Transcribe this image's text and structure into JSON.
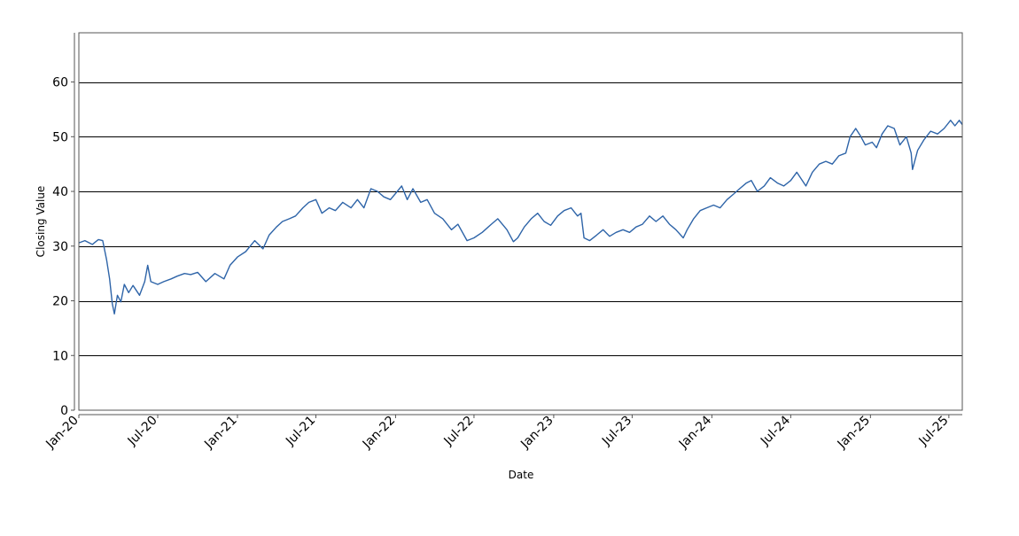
{
  "chart_data": {
    "type": "line",
    "title": "",
    "xlabel": "Date",
    "ylabel": "Closing Value",
    "xlim": [
      "2020-01-01",
      "2025-08-01"
    ],
    "ylim": [
      0,
      69
    ],
    "y_ticks": [
      0,
      10,
      20,
      30,
      40,
      50,
      60
    ],
    "x_ticks": [
      {
        "date": "2020-01-01",
        "label": "Jan-20"
      },
      {
        "date": "2020-07-01",
        "label": "Jul-20"
      },
      {
        "date": "2021-01-01",
        "label": "Jan-21"
      },
      {
        "date": "2021-07-01",
        "label": "Jul-21"
      },
      {
        "date": "2022-01-01",
        "label": "Jan-22"
      },
      {
        "date": "2022-07-01",
        "label": "Jul-22"
      },
      {
        "date": "2023-01-01",
        "label": "Jan-23"
      },
      {
        "date": "2023-07-01",
        "label": "Jul-23"
      },
      {
        "date": "2024-01-01",
        "label": "Jan-24"
      },
      {
        "date": "2024-07-01",
        "label": "Jul-24"
      },
      {
        "date": "2025-01-01",
        "label": "Jan-25"
      },
      {
        "date": "2025-07-01",
        "label": "Jul-25"
      }
    ],
    "grid": "horizontal",
    "legend": "none",
    "colors": {
      "line": "#2e64a8",
      "grid": "#000000",
      "frame": "#555555"
    },
    "series": [
      {
        "points": [
          [
            "2020-01-01",
            30.6
          ],
          [
            "2020-01-15",
            31.0
          ],
          [
            "2020-02-01",
            30.3
          ],
          [
            "2020-02-15",
            31.2
          ],
          [
            "2020-02-25",
            31.0
          ],
          [
            "2020-03-05",
            27.5
          ],
          [
            "2020-03-12",
            24.0
          ],
          [
            "2020-03-18",
            19.5
          ],
          [
            "2020-03-23",
            17.6
          ],
          [
            "2020-03-30",
            21.0
          ],
          [
            "2020-04-07",
            19.8
          ],
          [
            "2020-04-15",
            23.0
          ],
          [
            "2020-04-25",
            21.5
          ],
          [
            "2020-05-05",
            22.8
          ],
          [
            "2020-05-20",
            21.0
          ],
          [
            "2020-06-01",
            23.5
          ],
          [
            "2020-06-08",
            26.5
          ],
          [
            "2020-06-15",
            23.5
          ],
          [
            "2020-07-01",
            23.0
          ],
          [
            "2020-07-15",
            23.5
          ],
          [
            "2020-08-01",
            24.0
          ],
          [
            "2020-08-15",
            24.5
          ],
          [
            "2020-09-01",
            25.0
          ],
          [
            "2020-09-15",
            24.8
          ],
          [
            "2020-10-01",
            25.2
          ],
          [
            "2020-10-20",
            23.5
          ],
          [
            "2020-11-10",
            25.0
          ],
          [
            "2020-12-01",
            24.0
          ],
          [
            "2020-12-15",
            26.5
          ],
          [
            "2021-01-01",
            28.0
          ],
          [
            "2021-01-20",
            29.0
          ],
          [
            "2021-02-10",
            31.0
          ],
          [
            "2021-03-01",
            29.5
          ],
          [
            "2021-03-15",
            32.0
          ],
          [
            "2021-04-01",
            33.5
          ],
          [
            "2021-04-15",
            34.5
          ],
          [
            "2021-05-01",
            35.0
          ],
          [
            "2021-05-15",
            35.5
          ],
          [
            "2021-06-01",
            37.0
          ],
          [
            "2021-06-15",
            38.0
          ],
          [
            "2021-07-01",
            38.5
          ],
          [
            "2021-07-15",
            36.0
          ],
          [
            "2021-08-01",
            37.0
          ],
          [
            "2021-08-15",
            36.5
          ],
          [
            "2021-09-01",
            38.0
          ],
          [
            "2021-09-20",
            37.0
          ],
          [
            "2021-10-05",
            38.5
          ],
          [
            "2021-10-20",
            37.0
          ],
          [
            "2021-11-05",
            40.5
          ],
          [
            "2021-11-20",
            40.0
          ],
          [
            "2021-12-05",
            39.0
          ],
          [
            "2021-12-20",
            38.5
          ],
          [
            "2022-01-05",
            40.0
          ],
          [
            "2022-01-15",
            41.0
          ],
          [
            "2022-01-28",
            38.5
          ],
          [
            "2022-02-10",
            40.5
          ],
          [
            "2022-02-28",
            38.0
          ],
          [
            "2022-03-15",
            38.5
          ],
          [
            "2022-04-01",
            36.0
          ],
          [
            "2022-04-20",
            35.0
          ],
          [
            "2022-05-10",
            33.0
          ],
          [
            "2022-05-25",
            34.0
          ],
          [
            "2022-06-15",
            31.0
          ],
          [
            "2022-07-01",
            31.5
          ],
          [
            "2022-07-20",
            32.5
          ],
          [
            "2022-08-10",
            34.0
          ],
          [
            "2022-08-25",
            35.0
          ],
          [
            "2022-09-15",
            33.0
          ],
          [
            "2022-09-30",
            30.8
          ],
          [
            "2022-10-10",
            31.5
          ],
          [
            "2022-10-25",
            33.5
          ],
          [
            "2022-11-10",
            35.0
          ],
          [
            "2022-11-25",
            36.0
          ],
          [
            "2022-12-10",
            34.5
          ],
          [
            "2022-12-25",
            33.8
          ],
          [
            "2023-01-10",
            35.5
          ],
          [
            "2023-01-25",
            36.5
          ],
          [
            "2023-02-10",
            37.0
          ],
          [
            "2023-02-25",
            35.5
          ],
          [
            "2023-03-05",
            36.0
          ],
          [
            "2023-03-12",
            31.5
          ],
          [
            "2023-03-25",
            31.0
          ],
          [
            "2023-04-10",
            32.0
          ],
          [
            "2023-04-25",
            33.0
          ],
          [
            "2023-05-10",
            31.8
          ],
          [
            "2023-05-25",
            32.5
          ],
          [
            "2023-06-10",
            33.0
          ],
          [
            "2023-06-25",
            32.5
          ],
          [
            "2023-07-10",
            33.5
          ],
          [
            "2023-07-25",
            34.0
          ],
          [
            "2023-08-10",
            35.5
          ],
          [
            "2023-08-25",
            34.5
          ],
          [
            "2023-09-10",
            35.5
          ],
          [
            "2023-09-25",
            34.0
          ],
          [
            "2023-10-10",
            33.0
          ],
          [
            "2023-10-27",
            31.5
          ],
          [
            "2023-11-05",
            33.0
          ],
          [
            "2023-11-20",
            35.0
          ],
          [
            "2023-12-05",
            36.5
          ],
          [
            "2023-12-20",
            37.0
          ],
          [
            "2024-01-05",
            37.5
          ],
          [
            "2024-01-20",
            37.0
          ],
          [
            "2024-02-05",
            38.5
          ],
          [
            "2024-02-20",
            39.5
          ],
          [
            "2024-03-05",
            40.5
          ],
          [
            "2024-03-20",
            41.5
          ],
          [
            "2024-04-01",
            42.0
          ],
          [
            "2024-04-15",
            40.0
          ],
          [
            "2024-05-01",
            41.0
          ],
          [
            "2024-05-15",
            42.5
          ],
          [
            "2024-06-01",
            41.5
          ],
          [
            "2024-06-15",
            41.0
          ],
          [
            "2024-07-01",
            42.0
          ],
          [
            "2024-07-15",
            43.5
          ],
          [
            "2024-08-05",
            41.0
          ],
          [
            "2024-08-20",
            43.5
          ],
          [
            "2024-09-05",
            45.0
          ],
          [
            "2024-09-20",
            45.5
          ],
          [
            "2024-10-05",
            45.0
          ],
          [
            "2024-10-20",
            46.5
          ],
          [
            "2024-11-05",
            47.0
          ],
          [
            "2024-11-15",
            50.0
          ],
          [
            "2024-11-28",
            51.5
          ],
          [
            "2024-12-10",
            50.0
          ],
          [
            "2024-12-20",
            48.5
          ],
          [
            "2025-01-05",
            49.0
          ],
          [
            "2025-01-15",
            48.0
          ],
          [
            "2025-01-28",
            50.5
          ],
          [
            "2025-02-10",
            52.0
          ],
          [
            "2025-02-25",
            51.5
          ],
          [
            "2025-03-10",
            48.5
          ],
          [
            "2025-03-25",
            50.0
          ],
          [
            "2025-04-05",
            47.0
          ],
          [
            "2025-04-08",
            44.0
          ],
          [
            "2025-04-20",
            47.5
          ],
          [
            "2025-05-05",
            49.5
          ],
          [
            "2025-05-20",
            51.0
          ],
          [
            "2025-06-05",
            50.5
          ],
          [
            "2025-06-20",
            51.5
          ],
          [
            "2025-07-05",
            53.0
          ],
          [
            "2025-07-15",
            52.0
          ],
          [
            "2025-07-25",
            53.0
          ],
          [
            "2025-08-01",
            52.2
          ]
        ]
      }
    ]
  }
}
